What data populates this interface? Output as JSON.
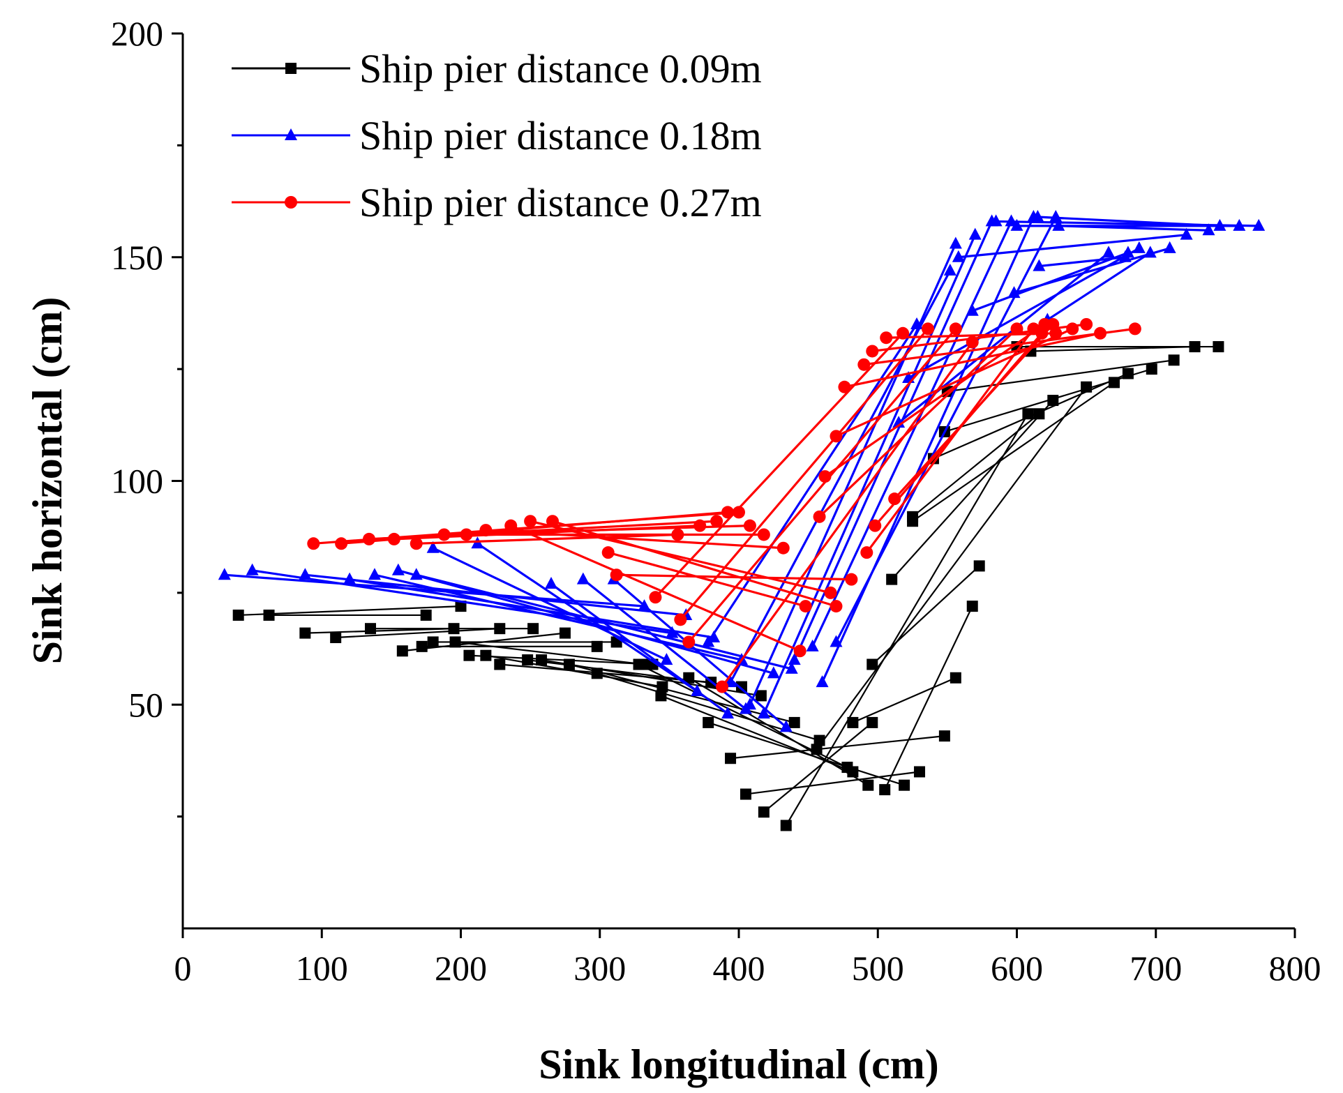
{
  "chart_data": {
    "type": "line",
    "title": "",
    "xlabel": "Sink longitudinal (cm)",
    "ylabel": "Sink horizontal (cm)",
    "xlim": [
      0,
      800
    ],
    "ylim": [
      0,
      200
    ],
    "grid": false,
    "legend_position": "top-left",
    "xticks": [
      {
        "value": 0,
        "label": "0"
      },
      {
        "value": 100,
        "label": "100"
      },
      {
        "value": 200,
        "label": "200"
      },
      {
        "value": 300,
        "label": "300"
      },
      {
        "value": 400,
        "label": "400"
      },
      {
        "value": 500,
        "label": "500"
      },
      {
        "value": 600,
        "label": "600"
      },
      {
        "value": 700,
        "label": "700"
      },
      {
        "value": 800,
        "label": "800"
      }
    ],
    "yticks": [
      {
        "value": 50,
        "label": "50"
      },
      {
        "value": 100,
        "label": "100"
      },
      {
        "value": 150,
        "label": "150"
      },
      {
        "value": 200,
        "label": "200"
      }
    ],
    "series": [
      {
        "name": "Ship pier distance 0.09m",
        "color": "#000000",
        "marker": "square",
        "segments": [
          [
            [
              40,
              70
            ],
            [
              200,
              72
            ]
          ],
          [
            [
              62,
              70
            ],
            [
              175,
              70
            ]
          ],
          [
            [
              88,
              66
            ],
            [
              195,
              67
            ]
          ],
          [
            [
              110,
              65
            ],
            [
              228,
              67
            ]
          ],
          [
            [
              135,
              67
            ],
            [
              252,
              67
            ]
          ],
          [
            [
              158,
              62
            ],
            [
              275,
              66
            ]
          ],
          [
            [
              172,
              63
            ],
            [
              298,
              63
            ]
          ],
          [
            [
              180,
              64
            ],
            [
              312,
              64
            ]
          ],
          [
            [
              196,
              64
            ],
            [
              332,
              59
            ]
          ],
          [
            [
              206,
              61
            ],
            [
              338,
              59
            ]
          ],
          [
            [
              218,
              61
            ],
            [
              345,
              54
            ]
          ],
          [
            [
              228,
              59
            ],
            [
              380,
              55
            ]
          ],
          [
            [
              248,
              60
            ],
            [
              402,
              54
            ]
          ],
          [
            [
              258,
              60
            ],
            [
              416,
              52
            ]
          ],
          [
            [
              278,
              59
            ],
            [
              440,
              46
            ]
          ],
          [
            [
              298,
              57
            ],
            [
              458,
              42
            ]
          ],
          [
            [
              328,
              59
            ],
            [
              478,
              36
            ]
          ],
          [
            [
              344,
              52
            ],
            [
              482,
              35
            ]
          ],
          [
            [
              364,
              56
            ],
            [
              493,
              32
            ]
          ],
          [
            [
              378,
              46
            ],
            [
              519,
              32
            ]
          ],
          [
            [
              394,
              38
            ],
            [
              548,
              43
            ]
          ],
          [
            [
              405,
              30
            ],
            [
              530,
              35
            ]
          ],
          [
            [
              418,
              26
            ],
            [
              496,
              46
            ]
          ],
          [
            [
              434,
              23
            ],
            [
              608,
              115
            ]
          ],
          [
            [
              496,
              59
            ],
            [
              573,
              81
            ]
          ],
          [
            [
              510,
              78
            ],
            [
              626,
              118
            ]
          ],
          [
            [
              525,
              92
            ],
            [
              616,
              115
            ]
          ],
          [
            [
              505,
              31
            ],
            [
              568,
              72
            ]
          ],
          [
            [
              482,
              46
            ],
            [
              556,
              56
            ]
          ],
          [
            [
              456,
              40
            ],
            [
              650,
              121
            ]
          ],
          [
            [
              600,
              130
            ],
            [
              745,
              130
            ]
          ],
          [
            [
              610,
              129
            ],
            [
              728,
              130
            ]
          ],
          [
            [
              550,
              120
            ],
            [
              713,
              127
            ]
          ],
          [
            [
              548,
              111
            ],
            [
              697,
              125
            ]
          ],
          [
            [
              540,
              105
            ],
            [
              680,
              124
            ]
          ],
          [
            [
              525,
              91
            ],
            [
              670,
              122
            ]
          ]
        ]
      },
      {
        "name": "Ship pier distance 0.18m",
        "color": "#0000ff",
        "marker": "triangle",
        "segments": [
          [
            [
              30,
              79
            ],
            [
              332,
              72
            ]
          ],
          [
            [
              50,
              80
            ],
            [
              352,
              66
            ]
          ],
          [
            [
              88,
              79
            ],
            [
              362,
              70
            ]
          ],
          [
            [
              120,
              78
            ],
            [
              382,
              65
            ]
          ],
          [
            [
              138,
              79
            ],
            [
              402,
              60
            ]
          ],
          [
            [
              155,
              80
            ],
            [
              425,
              57
            ]
          ],
          [
            [
              168,
              79
            ],
            [
              438,
              58
            ]
          ],
          [
            [
              180,
              85
            ],
            [
              348,
              60
            ]
          ],
          [
            [
              212,
              86
            ],
            [
              370,
              53
            ]
          ],
          [
            [
              265,
              77
            ],
            [
              392,
              48
            ]
          ],
          [
            [
              288,
              78
            ],
            [
              405,
              49
            ]
          ],
          [
            [
              310,
              78
            ],
            [
              434,
              45
            ]
          ],
          [
            [
              378,
              64
            ],
            [
              528,
              135
            ]
          ],
          [
            [
              394,
              55
            ],
            [
              552,
              147
            ]
          ],
          [
            [
              408,
              50
            ],
            [
              556,
              153
            ]
          ],
          [
            [
              418,
              48
            ],
            [
              570,
              155
            ]
          ],
          [
            [
              440,
              60
            ],
            [
              582,
              158
            ]
          ],
          [
            [
              453,
              63
            ],
            [
              596,
              158
            ]
          ],
          [
            [
              460,
              55
            ],
            [
              612,
              159
            ]
          ],
          [
            [
              470,
              64
            ],
            [
              628,
              159
            ]
          ],
          [
            [
              515,
              113
            ],
            [
              666,
              151
            ]
          ],
          [
            [
              522,
              123
            ],
            [
              688,
              152
            ]
          ],
          [
            [
              568,
              138
            ],
            [
              680,
              151
            ]
          ],
          [
            [
              598,
              142
            ],
            [
              710,
              152
            ]
          ],
          [
            [
              558,
              150
            ],
            [
              722,
              155
            ]
          ],
          [
            [
              585,
              158
            ],
            [
              774,
              157
            ]
          ],
          [
            [
              600,
              157
            ],
            [
              760,
              157
            ]
          ],
          [
            [
              615,
              159
            ],
            [
              746,
              157
            ]
          ],
          [
            [
              630,
              157
            ],
            [
              738,
              156
            ]
          ],
          [
            [
              622,
              136
            ],
            [
              696,
              151
            ]
          ],
          [
            [
              616,
              148
            ],
            [
              678,
              150
            ]
          ]
        ]
      },
      {
        "name": "Ship pier distance 0.27m",
        "color": "#ff0000",
        "marker": "circle",
        "segments": [
          [
            [
              94,
              86
            ],
            [
              400,
              93
            ]
          ],
          [
            [
              114,
              86
            ],
            [
              392,
              93
            ]
          ],
          [
            [
              134,
              87
            ],
            [
              384,
              91
            ]
          ],
          [
            [
              152,
              87
            ],
            [
              372,
              90
            ]
          ],
          [
            [
              168,
              86
            ],
            [
              356,
              88
            ]
          ],
          [
            [
              188,
              88
            ],
            [
              408,
              90
            ]
          ],
          [
            [
              204,
              88
            ],
            [
              418,
              88
            ]
          ],
          [
            [
              218,
              89
            ],
            [
              432,
              85
            ]
          ],
          [
            [
              236,
              90
            ],
            [
              444,
              62
            ]
          ],
          [
            [
              250,
              91
            ],
            [
              466,
              75
            ]
          ],
          [
            [
              266,
              91
            ],
            [
              470,
              72
            ]
          ],
          [
            [
              306,
              84
            ],
            [
              448,
              72
            ]
          ],
          [
            [
              312,
              79
            ],
            [
              481,
              78
            ]
          ],
          [
            [
              340,
              74
            ],
            [
              518,
              133
            ]
          ],
          [
            [
              358,
              69
            ],
            [
              536,
              134
            ]
          ],
          [
            [
              364,
              64
            ],
            [
              556,
              134
            ]
          ],
          [
            [
              388,
              54
            ],
            [
              568,
              131
            ]
          ],
          [
            [
              458,
              92
            ],
            [
              600,
              134
            ]
          ],
          [
            [
              462,
              101
            ],
            [
              620,
              135
            ]
          ],
          [
            [
              470,
              110
            ],
            [
              640,
              134
            ]
          ],
          [
            [
              476,
              121
            ],
            [
              660,
              133
            ]
          ],
          [
            [
              490,
              126
            ],
            [
              685,
              134
            ]
          ],
          [
            [
              496,
              129
            ],
            [
              650,
              135
            ]
          ],
          [
            [
              506,
              132
            ],
            [
              628,
              133
            ]
          ],
          [
            [
              512,
              96
            ],
            [
              626,
              135
            ]
          ],
          [
            [
              498,
              90
            ],
            [
              618,
              133
            ]
          ],
          [
            [
              492,
              84
            ],
            [
              612,
              134
            ]
          ]
        ]
      }
    ]
  },
  "legend": {
    "items": [
      {
        "label": "Ship pier distance 0.09m",
        "color": "#000000",
        "marker": "square"
      },
      {
        "label": "Ship pier distance 0.18m",
        "color": "#0000ff",
        "marker": "triangle"
      },
      {
        "label": "Ship pier distance 0.27m",
        "color": "#ff0000",
        "marker": "circle"
      }
    ]
  }
}
